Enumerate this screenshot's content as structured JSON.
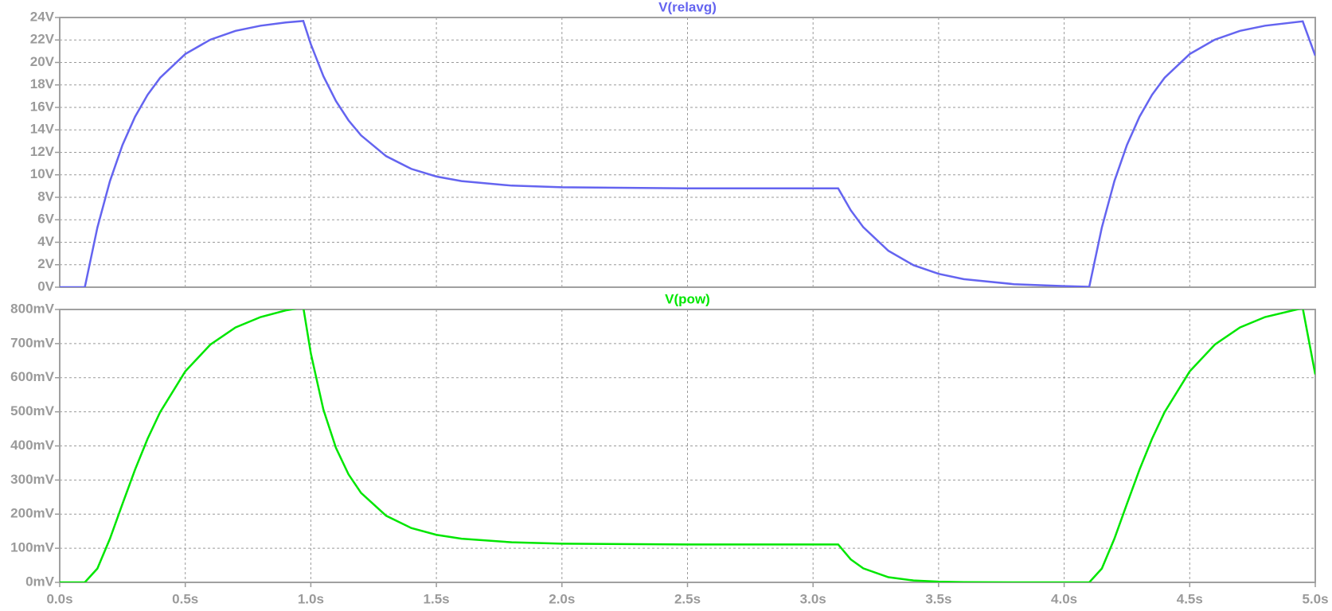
{
  "chart_data": [
    {
      "type": "line",
      "x": [
        0,
        0.1,
        0.15,
        0.2,
        0.25,
        0.3,
        0.35,
        0.4,
        0.5,
        0.6,
        0.7,
        0.8,
        0.9,
        0.97,
        1.0,
        1.05,
        1.1,
        1.15,
        1.2,
        1.3,
        1.4,
        1.5,
        1.6,
        1.8,
        2.0,
        2.5,
        3.1,
        3.15,
        3.2,
        3.3,
        3.4,
        3.5,
        3.6,
        3.8,
        4.0,
        4.1,
        4.15,
        4.2,
        4.25,
        4.3,
        4.35,
        4.4,
        4.5,
        4.6,
        4.7,
        4.8,
        4.95,
        5.0
      ],
      "series": [
        {
          "name": "V(relavg)",
          "color": "#6464f0",
          "values": [
            0,
            0,
            5.31,
            9.44,
            12.66,
            15.17,
            17.12,
            18.64,
            20.75,
            22.03,
            22.81,
            23.27,
            23.56,
            23.69,
            21.62,
            18.78,
            16.57,
            14.85,
            13.51,
            11.66,
            10.53,
            9.85,
            9.44,
            9.04,
            8.89,
            8.8,
            8.8,
            6.85,
            5.34,
            3.24,
            1.96,
            1.19,
            0.72,
            0.27,
            0.1,
            0.04,
            5.31,
            9.44,
            12.66,
            15.17,
            17.12,
            18.64,
            20.75,
            22.03,
            22.81,
            23.27,
            23.66,
            20.6
          ]
        }
      ],
      "xlim": [
        0,
        5
      ],
      "xticks": [
        0,
        0.5,
        1,
        1.5,
        2,
        2.5,
        3,
        3.5,
        4,
        4.5,
        5
      ],
      "ylim": [
        0,
        24
      ],
      "yticks": [
        {
          "value": 0,
          "label": "0V"
        },
        {
          "value": 2,
          "label": "2V"
        },
        {
          "value": 4,
          "label": "4V"
        },
        {
          "value": 6,
          "label": "6V"
        },
        {
          "value": 8,
          "label": "8V"
        },
        {
          "value": 10,
          "label": "10V"
        },
        {
          "value": 12,
          "label": "12V"
        },
        {
          "value": 14,
          "label": "14V"
        },
        {
          "value": 16,
          "label": "16V"
        },
        {
          "value": 18,
          "label": "18V"
        },
        {
          "value": 20,
          "label": "20V"
        },
        {
          "value": 22,
          "label": "22V"
        },
        {
          "value": 24,
          "label": "24V"
        }
      ],
      "grid": true
    },
    {
      "type": "line",
      "x": [
        0,
        0.1,
        0.15,
        0.2,
        0.25,
        0.3,
        0.35,
        0.4,
        0.5,
        0.6,
        0.7,
        0.8,
        0.9,
        0.97,
        1.0,
        1.05,
        1.1,
        1.15,
        1.2,
        1.3,
        1.4,
        1.5,
        1.6,
        1.8,
        2.0,
        2.5,
        3.1,
        3.15,
        3.2,
        3.3,
        3.4,
        3.5,
        3.6,
        3.8,
        4.0,
        4.1,
        4.15,
        4.2,
        4.25,
        4.3,
        4.35,
        4.4,
        4.5,
        4.6,
        4.7,
        4.8,
        4.95,
        5.0
      ],
      "series": [
        {
          "name": "V(pow)",
          "color": "#00e600",
          "values": [
            0,
            0,
            40.5,
            128.0,
            230.2,
            330.5,
            421.0,
            499.1,
            618.5,
            697.1,
            747.4,
            777.8,
            797.3,
            806.1,
            671.4,
            506.6,
            394.4,
            316.8,
            262.2,
            195.3,
            159.3,
            139.4,
            128.0,
            117.4,
            113.5,
            111.2,
            111.2,
            67.4,
            41.0,
            15.1,
            5.5,
            2.0,
            0.7,
            0.1,
            0,
            0,
            40.5,
            128.0,
            230.2,
            330.5,
            421.0,
            499.1,
            618.5,
            697.1,
            747.4,
            777.8,
            804.1,
            609.6
          ]
        }
      ],
      "xlim": [
        0,
        5
      ],
      "xticks": [
        {
          "value": 0,
          "label": "0.0s"
        },
        {
          "value": 0.5,
          "label": "0.5s"
        },
        {
          "value": 1,
          "label": "1.0s"
        },
        {
          "value": 1.5,
          "label": "1.5s"
        },
        {
          "value": 2,
          "label": "2.0s"
        },
        {
          "value": 2.5,
          "label": "2.5s"
        },
        {
          "value": 3,
          "label": "3.0s"
        },
        {
          "value": 3.5,
          "label": "3.5s"
        },
        {
          "value": 4,
          "label": "4.0s"
        },
        {
          "value": 4.5,
          "label": "4.5s"
        },
        {
          "value": 5,
          "label": "5.0s"
        }
      ],
      "ylim": [
        0,
        800
      ],
      "yticks": [
        {
          "value": 0,
          "label": "0mV"
        },
        {
          "value": 100,
          "label": "100mV"
        },
        {
          "value": 200,
          "label": "200mV"
        },
        {
          "value": 300,
          "label": "300mV"
        },
        {
          "value": 400,
          "label": "400mV"
        },
        {
          "value": 500,
          "label": "500mV"
        },
        {
          "value": 600,
          "label": "600mV"
        },
        {
          "value": 700,
          "label": "700mV"
        },
        {
          "value": 800,
          "label": "800mV"
        }
      ],
      "grid": true
    }
  ]
}
